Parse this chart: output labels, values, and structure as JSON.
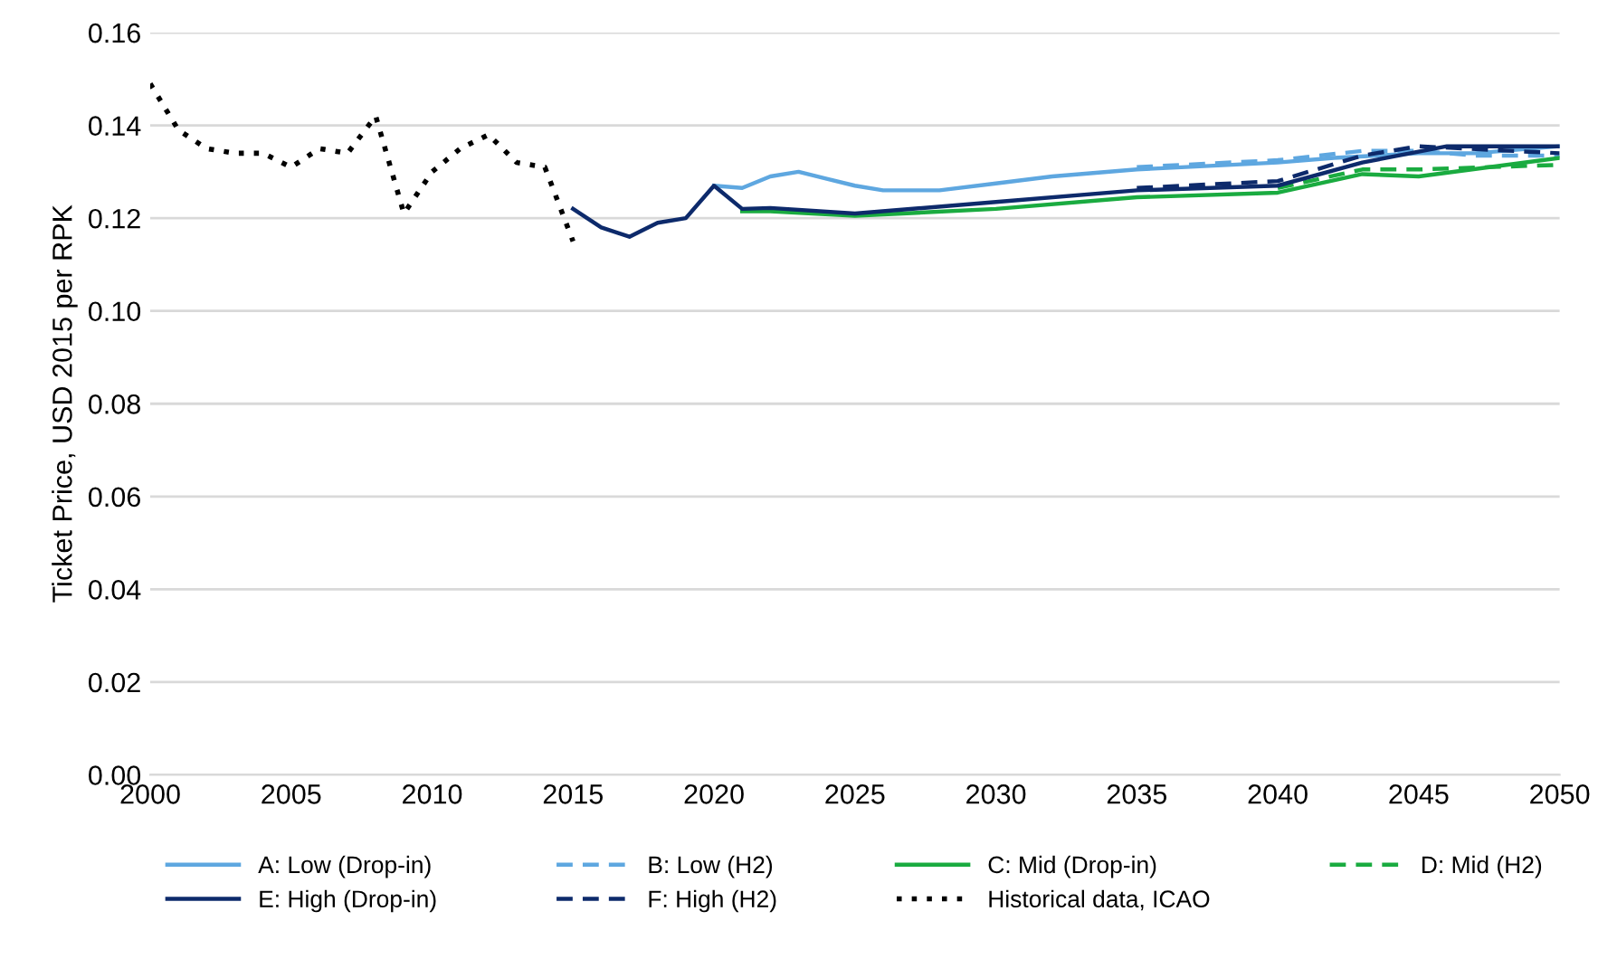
{
  "chart_data": {
    "type": "line",
    "ylabel": "Ticket Price, USD 2015 per RPK",
    "xlim": [
      2000,
      2050
    ],
    "xticks": [
      2000,
      2005,
      2010,
      2015,
      2020,
      2025,
      2030,
      2035,
      2040,
      2045,
      2050
    ],
    "ylim": [
      0,
      0.16
    ],
    "yticks": [
      {
        "value": 0,
        "label": "0.00"
      },
      {
        "value": 0.02,
        "label": "0.02"
      },
      {
        "value": 0.04,
        "label": "0.04"
      },
      {
        "value": 0.06,
        "label": "0.06"
      },
      {
        "value": 0.08,
        "label": "0.08"
      },
      {
        "value": 0.1,
        "label": "0.10"
      },
      {
        "value": 0.12,
        "label": "0.12"
      },
      {
        "value": 0.14,
        "label": "0.14"
      },
      {
        "value": 0.16,
        "label": "0.16"
      }
    ],
    "grid": "y",
    "legend": "bottom",
    "series": [
      {
        "name": "A: Low (Drop-in)",
        "color": "#5ea7e0",
        "line_style": "solid",
        "x": [
          2020,
          2021,
          2022,
          2023,
          2024,
          2025,
          2026,
          2028,
          2030,
          2032,
          2035,
          2040,
          2042,
          2045,
          2047,
          2050
        ],
        "values": [
          0.127,
          0.1265,
          0.129,
          0.13,
          0.1285,
          0.127,
          0.126,
          0.126,
          0.1275,
          0.129,
          0.1305,
          0.132,
          0.133,
          0.134,
          0.134,
          0.1355
        ]
      },
      {
        "name": "B: Low (H2)",
        "color": "#5ea7e0",
        "line_style": "dashed",
        "x": [
          2035,
          2040,
          2043,
          2045,
          2047,
          2050
        ],
        "values": [
          0.131,
          0.1325,
          0.1345,
          0.1345,
          0.1335,
          0.1335
        ]
      },
      {
        "name": "C: Mid (Drop-in)",
        "color": "#1aab40",
        "line_style": "solid",
        "x": [
          2021,
          2022,
          2025,
          2030,
          2035,
          2040,
          2043,
          2045,
          2050
        ],
        "values": [
          0.1215,
          0.1215,
          0.1205,
          0.122,
          0.1245,
          0.1255,
          0.1295,
          0.129,
          0.133
        ]
      },
      {
        "name": "D: Mid (H2)",
        "color": "#1aab40",
        "line_style": "dashed",
        "x": [
          2040,
          2043,
          2045,
          2050
        ],
        "values": [
          0.1265,
          0.1305,
          0.1305,
          0.1315
        ]
      },
      {
        "name": "E: High (Drop-in)",
        "color": "#0d2a6b",
        "line_style": "solid",
        "x": [
          2015,
          2016,
          2017,
          2018,
          2019,
          2020,
          2021,
          2022,
          2025,
          2030,
          2035,
          2040,
          2043,
          2046,
          2050
        ],
        "values": [
          0.122,
          0.118,
          0.116,
          0.119,
          0.12,
          0.127,
          0.122,
          0.1222,
          0.121,
          0.1235,
          0.126,
          0.127,
          0.132,
          0.1355,
          0.1355
        ]
      },
      {
        "name": "F: High (H2)",
        "color": "#0d2a6b",
        "line_style": "dashed",
        "x": [
          2035,
          2040,
          2043,
          2045,
          2050
        ],
        "values": [
          0.1265,
          0.128,
          0.1335,
          0.1355,
          0.134
        ]
      },
      {
        "name": "Historical data, ICAO",
        "color": "#000000",
        "line_style": "dotted",
        "x": [
          2000,
          2001,
          2002,
          2003,
          2004,
          2005,
          2006,
          2007,
          2008,
          2009,
          2010,
          2011,
          2012,
          2013,
          2014,
          2015
        ],
        "values": [
          0.149,
          0.139,
          0.135,
          0.134,
          0.134,
          0.131,
          0.135,
          0.134,
          0.142,
          0.121,
          0.13,
          0.135,
          0.138,
          0.132,
          0.131,
          0.115
        ]
      }
    ]
  }
}
